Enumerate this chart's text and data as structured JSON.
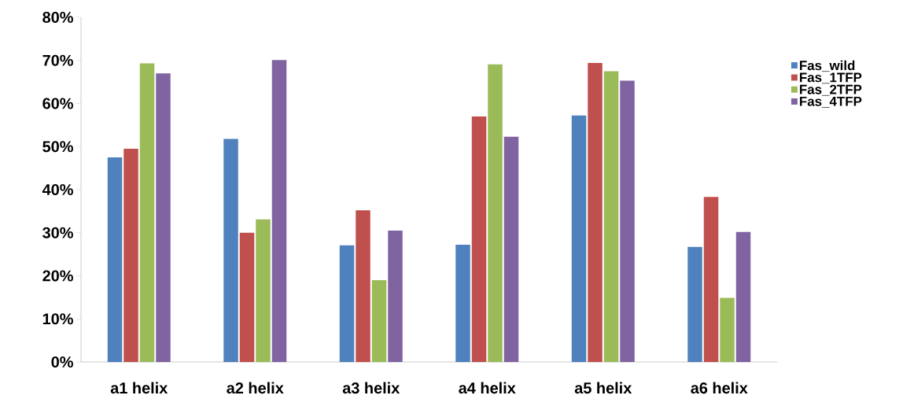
{
  "chart_data": {
    "type": "bar",
    "categories": [
      "a1 helix",
      "a2 helix",
      "a3 helix",
      "a4 helix",
      "a5 helix",
      "a6 helix"
    ],
    "series": [
      {
        "name": "Fas_wild",
        "color": "#4f81bd",
        "values": [
          0.475,
          0.518,
          0.271,
          0.272,
          0.572,
          0.267
        ]
      },
      {
        "name": "Fas_1TFP",
        "color": "#c0504d",
        "values": [
          0.495,
          0.3,
          0.352,
          0.57,
          0.694,
          0.383
        ]
      },
      {
        "name": "Fas_2TFP",
        "color": "#9bbb59",
        "values": [
          0.693,
          0.331,
          0.19,
          0.691,
          0.675,
          0.149
        ]
      },
      {
        "name": "Fas_4TFP",
        "color": "#8064a2",
        "values": [
          0.67,
          0.701,
          0.305,
          0.523,
          0.653,
          0.302
        ]
      }
    ],
    "ylim": [
      0,
      0.8
    ],
    "yticks": [
      {
        "value": 0,
        "label": "0%"
      },
      {
        "value": 0.1,
        "label": "10%"
      },
      {
        "value": 0.2,
        "label": "20%"
      },
      {
        "value": 0.3,
        "label": "30%"
      },
      {
        "value": 0.4,
        "label": "40%"
      },
      {
        "value": 0.5,
        "label": "50%"
      },
      {
        "value": 0.6,
        "label": "60%"
      },
      {
        "value": 0.7,
        "label": "70%"
      },
      {
        "value": 0.8,
        "label": "80%"
      }
    ],
    "grid": false,
    "legend": "right"
  }
}
